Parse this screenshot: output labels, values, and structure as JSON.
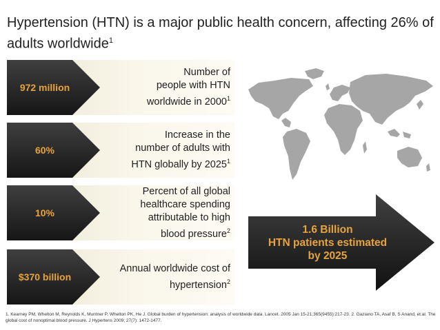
{
  "title": {
    "text": "Hypertension (HTN) is a major public health  concern, affecting 26% of adults worldwide",
    "ref": "1"
  },
  "stats": [
    {
      "metric": "972 million",
      "lines": [
        "Number of",
        "people with HTN",
        "worldwide in 2000"
      ],
      "ref": "1"
    },
    {
      "metric": "60%",
      "lines": [
        "Increase in the",
        "number of adults with",
        "HTN globally by 2025"
      ],
      "ref": "1"
    },
    {
      "metric": "10%",
      "lines": [
        "Percent of all global",
        "healthcare spending",
        "attributable to high",
        "blood pressure"
      ],
      "ref": "2"
    },
    {
      "metric": "$370 billion",
      "lines": [
        "Annual worldwide cost of",
        "hypertension"
      ],
      "ref": "2"
    }
  ],
  "callout": {
    "lines": [
      "1.6 Billion",
      "HTN patients estimated",
      "by 2025"
    ]
  },
  "footnote": {
    "lines": [
      "1. Kearney PM, Whelton M, Reynolds K, Muntner P, Whelton PK, He J. Global burden of hypertension: analysis of worldwide data. Lancet. 2005 Jan 15-21;365(9455):217-23.  2. Gaziano TA, Asaf B, S Anand, et.al. The",
      "global cost of nonoptimal blood pressure. J Hypertens 2009; 27(7): 1472-1477."
    ]
  },
  "colors": {
    "accent": "#e8a33d",
    "dark": "#1e1e1e",
    "cream": "#f8f4e6",
    "map": "#a6a6a6"
  },
  "icons": {
    "map": "world-map-icon"
  }
}
